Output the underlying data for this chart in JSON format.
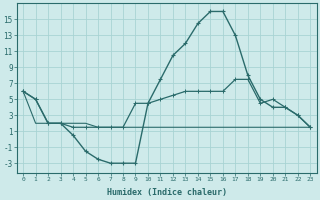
{
  "xlabel": "Humidex (Indice chaleur)",
  "background_color": "#ceeaea",
  "grid_color": "#a8d4d4",
  "line_color": "#2a6b6b",
  "xlim": [
    -0.5,
    23.5
  ],
  "ylim": [
    -4.2,
    17.0
  ],
  "yticks": [
    -3,
    -1,
    1,
    3,
    5,
    7,
    9,
    11,
    13,
    15
  ],
  "xticks": [
    0,
    1,
    2,
    3,
    4,
    5,
    6,
    7,
    8,
    9,
    10,
    11,
    12,
    13,
    14,
    15,
    16,
    17,
    18,
    19,
    20,
    21,
    22,
    23
  ],
  "line1_x": [
    0,
    1,
    2,
    3,
    4,
    5,
    6,
    7,
    8,
    9,
    10,
    11,
    12,
    13,
    14,
    15,
    16,
    17,
    18,
    19,
    20,
    21,
    22,
    23
  ],
  "line1_y": [
    6.0,
    5.0,
    2.0,
    2.0,
    0.5,
    -1.5,
    -2.5,
    -3.0,
    -3.0,
    -3.0,
    4.5,
    7.5,
    10.5,
    12.0,
    14.5,
    16.0,
    16.0,
    13.0,
    8.0,
    5.0,
    4.0,
    4.0,
    3.0,
    1.5
  ],
  "line2_x": [
    0,
    1,
    2,
    3,
    4,
    5,
    6,
    7,
    8,
    9,
    10,
    11,
    12,
    13,
    14,
    15,
    16,
    17,
    18,
    19,
    20,
    21,
    22,
    23
  ],
  "line2_y": [
    6.0,
    5.0,
    2.0,
    2.0,
    1.5,
    1.5,
    1.5,
    1.5,
    1.5,
    4.5,
    4.5,
    5.0,
    5.5,
    6.0,
    6.0,
    6.0,
    6.0,
    7.5,
    7.5,
    4.5,
    5.0,
    4.0,
    3.0,
    1.5
  ],
  "line3_x": [
    0,
    1,
    2,
    3,
    4,
    5,
    6,
    7,
    8,
    9,
    10,
    11,
    12,
    13,
    14,
    15,
    16,
    17,
    18,
    19,
    20,
    21,
    22,
    23
  ],
  "line3_y": [
    6.0,
    2.0,
    2.0,
    2.0,
    2.0,
    2.0,
    1.5,
    1.5,
    1.5,
    1.5,
    1.5,
    1.5,
    1.5,
    1.5,
    1.5,
    1.5,
    1.5,
    1.5,
    1.5,
    1.5,
    1.5,
    1.5,
    1.5,
    1.5
  ]
}
